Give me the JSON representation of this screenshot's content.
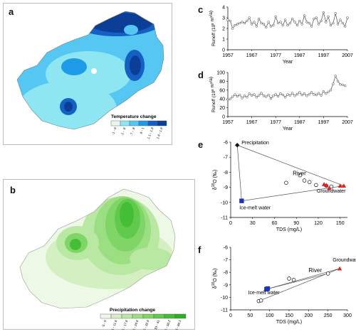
{
  "panels": {
    "a": {
      "label": "a"
    },
    "b": {
      "label": "b"
    },
    "c": {
      "label": "c"
    },
    "d": {
      "label": "d"
    },
    "e": {
      "label": "e"
    },
    "f": {
      "label": "f"
    }
  },
  "maps": {
    "temperature": {
      "legend_title": "Temperature change",
      "classes": [
        "-1 - 0",
        ".1 - .6",
        ".7 - .8",
        ".9 - 1",
        "1.1 - 1.3",
        "1.4 - 1.9"
      ],
      "colors": [
        "#e9f6ee",
        "#8ee6f2",
        "#55c7f2",
        "#1e9be6",
        "#1660c4",
        "#0b3e96"
      ]
    },
    "precipitation": {
      "legend_title": "Precipitation change",
      "classes": [
        "-5 - 0",
        "1 - 11.6",
        "11.6 - 17.6",
        "17.6 - 24.6",
        "24.6 - 32.9",
        "33 - 41",
        "41.1 - 50.2",
        "50.3 - 66.1"
      ],
      "colors": [
        "#eef8e6",
        "#d4f0c2",
        "#b8e8a1",
        "#9bdf82",
        "#7fd566",
        "#61c94c",
        "#45bd36",
        "#2ab125"
      ]
    }
  },
  "chart_data": [
    {
      "panel": "c",
      "type": "line",
      "xlabel": "Year",
      "ylabel": "Runoff (10",
      "ylabel_sup1": "8",
      "ylabel_mid": " m",
      "ylabel_sup2": "3",
      "ylabel_end": "/a)",
      "xticks": [
        1957,
        1967,
        1977,
        1987,
        1997,
        2007
      ],
      "yticks": [
        0,
        1,
        2,
        3,
        4
      ],
      "xlim": [
        1957,
        2007
      ],
      "ylim": [
        0,
        4
      ],
      "x": [
        1957,
        1958,
        1959,
        1960,
        1961,
        1962,
        1963,
        1964,
        1965,
        1966,
        1967,
        1968,
        1969,
        1970,
        1971,
        1972,
        1973,
        1974,
        1975,
        1976,
        1977,
        1978,
        1979,
        1980,
        1981,
        1982,
        1983,
        1984,
        1985,
        1986,
        1987,
        1988,
        1989,
        1990,
        1991,
        1992,
        1993,
        1994,
        1995,
        1996,
        1997,
        1998,
        1999,
        2000,
        2001,
        2002,
        2003,
        2004,
        2005,
        2006,
        2007
      ],
      "values": [
        2.8,
        2.7,
        2.0,
        2.3,
        2.4,
        2.5,
        2.6,
        2.5,
        2.7,
        3.0,
        2.4,
        2.6,
        2.2,
        2.9,
        2.5,
        2.4,
        2.1,
        2.6,
        2.2,
        2.3,
        3.1,
        2.5,
        2.6,
        2.3,
        2.8,
        2.3,
        2.5,
        2.9,
        2.6,
        2.3,
        2.7,
        2.4,
        3.2,
        2.6,
        2.5,
        2.2,
        2.9,
        3.0,
        2.4,
        2.7,
        3.5,
        2.6,
        3.1,
        2.3,
        2.5,
        3.4,
        2.4,
        2.8,
        2.5,
        2.2,
        3.0
      ]
    },
    {
      "panel": "d",
      "type": "line",
      "xlabel": "Year",
      "ylabel": "Runoff (10",
      "ylabel_sup1": "8",
      "ylabel_mid": " m",
      "ylabel_sup2": "3",
      "ylabel_end": "/a)",
      "xticks": [
        1957,
        1967,
        1977,
        1987,
        1997,
        2007
      ],
      "yticks": [
        0,
        20,
        40,
        60,
        80,
        100
      ],
      "xlim": [
        1957,
        2007
      ],
      "ylim": [
        0,
        100
      ],
      "x": [
        1957,
        1958,
        1959,
        1960,
        1961,
        1962,
        1963,
        1964,
        1965,
        1966,
        1967,
        1968,
        1969,
        1970,
        1971,
        1972,
        1973,
        1974,
        1975,
        1976,
        1977,
        1978,
        1979,
        1980,
        1981,
        1982,
        1983,
        1984,
        1985,
        1986,
        1987,
        1988,
        1989,
        1990,
        1991,
        1992,
        1993,
        1994,
        1995,
        1996,
        1997,
        1998,
        1999,
        2000,
        2001,
        2002,
        2003,
        2004,
        2005,
        2006
      ],
      "values": [
        38,
        40,
        45,
        50,
        46,
        49,
        42,
        47,
        44,
        52,
        48,
        50,
        44,
        48,
        53,
        47,
        45,
        49,
        41,
        47,
        50,
        46,
        52,
        49,
        44,
        50,
        48,
        53,
        47,
        51,
        55,
        49,
        52,
        47,
        51,
        55,
        50,
        49,
        53,
        48,
        57,
        52,
        56,
        60,
        74,
        92,
        80,
        73,
        72,
        70
      ]
    },
    {
      "panel": "e",
      "type": "scatter",
      "xlabel": "TDS (mg/L)",
      "ylabel": "δ",
      "ylabel_sup": "18",
      "ylabel_end": "O (‰)",
      "xticks": [
        0,
        30,
        60,
        90,
        120,
        150
      ],
      "yticks": [
        -6,
        -7,
        -8,
        -9,
        -10,
        -11
      ],
      "xlim": [
        0,
        160
      ],
      "ylim": [
        -11,
        -6
      ],
      "annotations": [
        {
          "text": "Precipitation",
          "x": 9,
          "y": -6.15
        },
        {
          "text": "River",
          "x": 85,
          "y": -8.2
        },
        {
          "text": "Groundwater",
          "x": 118,
          "y": -9.35
        },
        {
          "text": "Ice-melt water",
          "x": 12,
          "y": -10.45
        }
      ],
      "triangle": [
        [
          9,
          -6.2
        ],
        [
          155,
          -8.9
        ],
        [
          15,
          -9.9
        ]
      ],
      "series": [
        {
          "name": "Precipitation",
          "marker": "diamond",
          "color": "#111111",
          "points": [
            [
              9,
              -6.2
            ]
          ]
        },
        {
          "name": "Ice-melt water",
          "marker": "square",
          "color": "#2233bb",
          "points": [
            [
              15,
              -9.9
            ]
          ]
        },
        {
          "name": "River",
          "marker": "circle",
          "color": "#111111",
          "points": [
            [
              76,
              -8.7
            ],
            [
              95,
              -8.2
            ],
            [
              101,
              -8.55
            ],
            [
              108,
              -8.65
            ],
            [
              117,
              -8.85
            ],
            [
              131,
              -8.9
            ],
            [
              138,
              -8.95
            ]
          ]
        },
        {
          "name": "Groundwater",
          "marker": "triangle",
          "color": "#dd2222",
          "points": [
            [
              128,
              -8.8
            ],
            [
              131,
              -8.85
            ],
            [
              135,
              -9.05
            ],
            [
              150,
              -8.9
            ],
            [
              155,
              -8.9
            ]
          ]
        }
      ]
    },
    {
      "panel": "f",
      "type": "scatter",
      "xlabel": "TDS (mg/L)",
      "ylabel": "δ",
      "ylabel_sup": "18",
      "ylabel_end": "O (‰)",
      "xticks": [
        0,
        50,
        100,
        150,
        200,
        250,
        300
      ],
      "yticks": [
        -6,
        -7,
        -8,
        -9,
        -10,
        -11
      ],
      "xlim": [
        0,
        300
      ],
      "ylim": [
        -11,
        -6
      ],
      "annotations": [
        {
          "text": "Groundwater",
          "x": 262,
          "y": -7.15
        },
        {
          "text": "River",
          "x": 200,
          "y": -8.0
        },
        {
          "text": "Ice-melt water",
          "x": 45,
          "y": -9.75
        }
      ],
      "lines": [
        [
          [
            72,
            -10.3
          ],
          [
            280,
            -7.7
          ]
        ],
        [
          [
            92,
            -9.35
          ],
          [
            280,
            -7.7
          ]
        ],
        [
          [
            92,
            -9.35
          ],
          [
            250,
            -8.1
          ]
        ]
      ],
      "series": [
        {
          "name": "Ice-melt water",
          "marker": "square",
          "color": "#2233bb",
          "points": [
            [
              92,
              -9.35
            ],
            [
              95,
              -9.3
            ]
          ]
        },
        {
          "name": "River",
          "marker": "circle",
          "color": "#111111",
          "points": [
            [
              72,
              -10.3
            ],
            [
              78,
              -10.25
            ],
            [
              150,
              -8.5
            ],
            [
              162,
              -8.6
            ],
            [
              250,
              -8.1
            ]
          ]
        },
        {
          "name": "Groundwater",
          "marker": "triangle",
          "color": "#dd2222",
          "points": [
            [
              280,
              -7.7
            ]
          ]
        }
      ]
    }
  ]
}
